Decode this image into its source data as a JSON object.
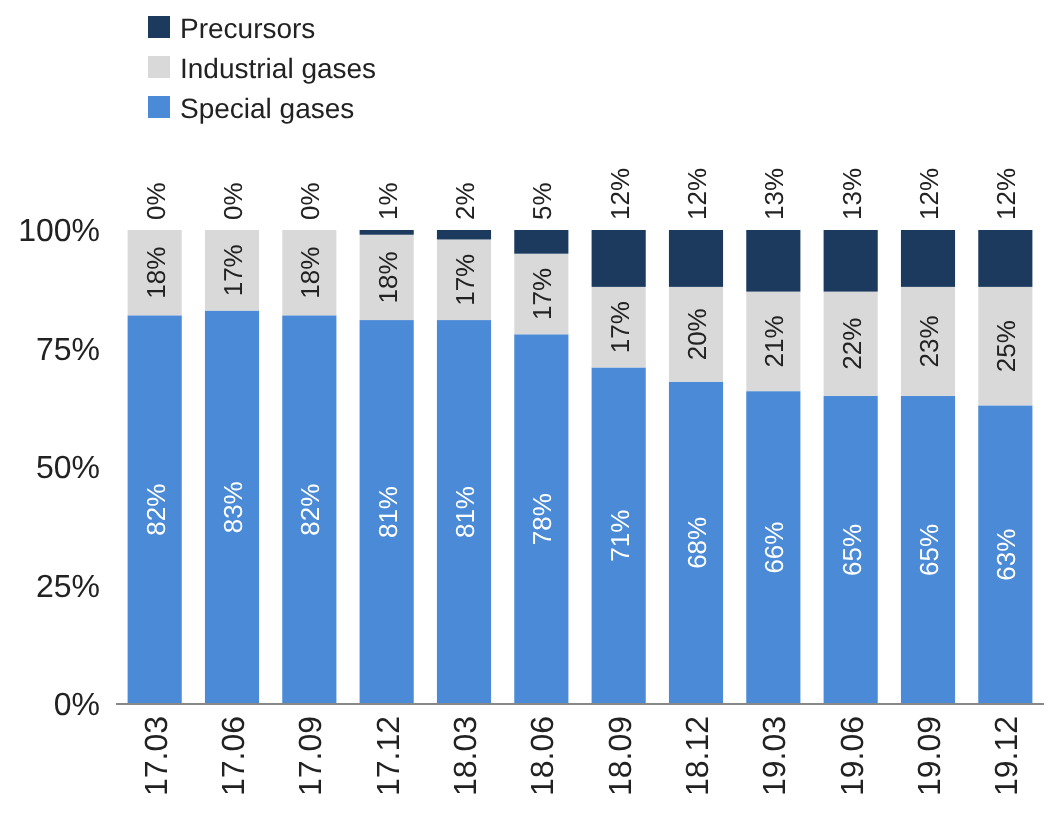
{
  "chart_data": {
    "type": "bar",
    "stacked": true,
    "categories": [
      "17.03",
      "17.06",
      "17.09",
      "17.12",
      "18.03",
      "18.06",
      "18.09",
      "18.12",
      "19.03",
      "19.06",
      "19.09",
      "19.12"
    ],
    "series": [
      {
        "name": "Special gases",
        "color": "#4a8ad6",
        "values": [
          82,
          83,
          82,
          81,
          81,
          78,
          71,
          68,
          66,
          65,
          65,
          63
        ],
        "value_labels": [
          "82%",
          "83%",
          "82%",
          "81%",
          "81%",
          "78%",
          "71%",
          "68%",
          "66%",
          "65%",
          "65%",
          "63%"
        ]
      },
      {
        "name": "Industrial gases",
        "color": "#d9d9d9",
        "values": [
          18,
          17,
          18,
          18,
          17,
          17,
          17,
          20,
          21,
          22,
          23,
          25
        ],
        "value_labels": [
          "18%",
          "17%",
          "18%",
          "18%",
          "17%",
          "17%",
          "17%",
          "20%",
          "21%",
          "22%",
          "23%",
          "25%"
        ]
      },
      {
        "name": "Precursors",
        "color": "#1c3a5e",
        "values": [
          0,
          0,
          0,
          1,
          2,
          5,
          12,
          12,
          13,
          13,
          12,
          12
        ],
        "value_labels": [
          "0%",
          "0%",
          "0%",
          "1%",
          "2%",
          "5%",
          "12%",
          "12%",
          "13%",
          "13%",
          "12%",
          "12%"
        ]
      }
    ],
    "ylim": [
      0,
      100
    ],
    "yticks": [
      {
        "value": 0,
        "label": "0%"
      },
      {
        "value": 25,
        "label": "25%"
      },
      {
        "value": 50,
        "label": "50%"
      },
      {
        "value": 75,
        "label": "75%"
      },
      {
        "value": 100,
        "label": "100%"
      }
    ],
    "grid": false,
    "legend": "top left"
  }
}
